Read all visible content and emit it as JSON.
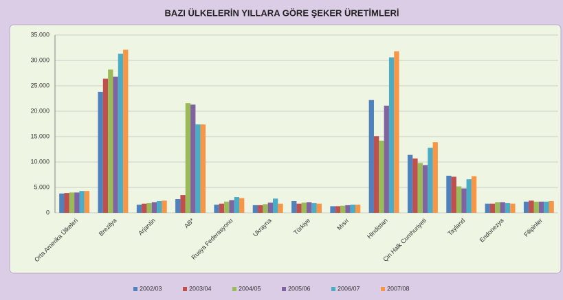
{
  "chart_data": {
    "type": "bar",
    "title": "BAZI ÜLKELERİN YILLARA GÖRE ŞEKER ÜRETİMLERİ",
    "categories": [
      "Orta Amerika Ülkeleri",
      "Brezilya",
      "Arjantin",
      "AB*",
      "Rusya Federasyonu",
      "Ukrayna",
      "Türkiye",
      "Mısır",
      "Hindistan",
      "Çin Halk Cumhuriyeti",
      "Tayland",
      "Endonezya",
      "Filipinler"
    ],
    "series": [
      {
        "name": "2002/03",
        "color": "#4f81bd",
        "values": [
          3800,
          23800,
          1600,
          2700,
          1600,
          1500,
          2300,
          1300,
          22200,
          11400,
          7300,
          1800,
          2200
        ]
      },
      {
        "name": "2003/04",
        "color": "#c0504d",
        "values": [
          3900,
          26400,
          1800,
          3500,
          1800,
          1500,
          1800,
          1300,
          15100,
          10700,
          7100,
          1800,
          2400
        ]
      },
      {
        "name": "2004/05",
        "color": "#9bbb59",
        "values": [
          4000,
          28200,
          1900,
          21600,
          2200,
          1700,
          2000,
          1400,
          14200,
          9800,
          5200,
          2100,
          2200
        ]
      },
      {
        "name": "2005/06",
        "color": "#8064a2",
        "values": [
          4000,
          26800,
          2100,
          21300,
          2500,
          2000,
          2100,
          1500,
          21100,
          9400,
          4800,
          2100,
          2200
        ]
      },
      {
        "name": "2006/07",
        "color": "#4bacc6",
        "values": [
          4300,
          31300,
          2300,
          17400,
          3100,
          2800,
          1900,
          1600,
          30600,
          12800,
          6600,
          1900,
          2200
        ]
      },
      {
        "name": "2007/08",
        "color": "#f79646",
        "values": [
          4300,
          32100,
          2400,
          17400,
          2900,
          1800,
          1800,
          1600,
          31800,
          13900,
          7200,
          1800,
          2300
        ]
      }
    ],
    "ylim": [
      0,
      35000
    ],
    "yticks": [
      {
        "value": 0,
        "label": "0"
      },
      {
        "value": 5000,
        "label": "5.000"
      },
      {
        "value": 10000,
        "label": "10.000"
      },
      {
        "value": 15000,
        "label": "15.000"
      },
      {
        "value": 20000,
        "label": "20.000"
      },
      {
        "value": 25000,
        "label": "25.000"
      },
      {
        "value": 30000,
        "label": "30.000"
      },
      {
        "value": 35000,
        "label": "35.000"
      }
    ],
    "grid": true,
    "legend": "bottom"
  }
}
